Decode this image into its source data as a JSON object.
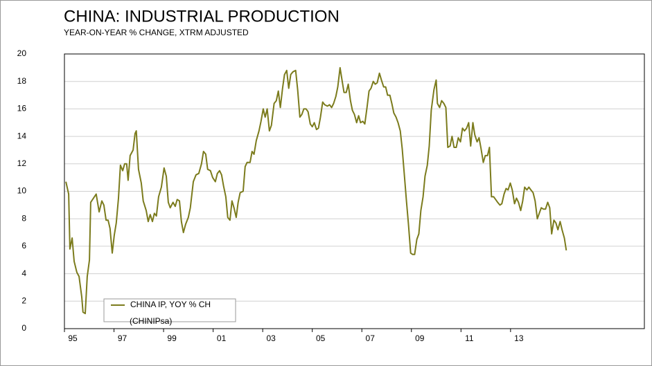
{
  "chart_data": {
    "type": "line",
    "title": "CHINA: INDUSTRIAL PRODUCTION",
    "subtitle": "YEAR-ON-YEAR % CHANGE, XTRM ADJUSTED",
    "x": [
      1995.06,
      1995.17,
      1995.22,
      1995.31,
      1995.39,
      1995.5,
      1995.59,
      1995.7,
      1995.75,
      1995.84,
      1995.92,
      1996.01,
      1996.06,
      1996.17,
      1996.28,
      1996.4,
      1996.51,
      1996.59,
      1996.68,
      1996.76,
      1996.84,
      1996.93,
      1997.01,
      1997.09,
      1997.18,
      1997.26,
      1997.35,
      1997.43,
      1997.51,
      1997.57,
      1997.65,
      1997.77,
      1997.85,
      1997.9,
      1997.99,
      1998.1,
      1998.18,
      1998.3,
      1998.38,
      1998.46,
      1998.55,
      1998.63,
      1998.71,
      1998.8,
      1998.91,
      1999.02,
      1999.11,
      1999.19,
      1999.27,
      1999.38,
      1999.47,
      1999.55,
      1999.64,
      1999.72,
      1999.8,
      1999.89,
      2000.0,
      2000.08,
      2000.2,
      2000.31,
      2000.42,
      2000.53,
      2000.61,
      2000.7,
      2000.78,
      2000.89,
      2000.98,
      2001.09,
      2001.17,
      2001.26,
      2001.34,
      2001.42,
      2001.51,
      2001.59,
      2001.68,
      2001.76,
      2001.84,
      2001.93,
      2002.01,
      2002.09,
      2002.21,
      2002.29,
      2002.37,
      2002.49,
      2002.57,
      2002.65,
      2002.74,
      2002.85,
      2002.93,
      2003.02,
      2003.1,
      2003.18,
      2003.27,
      2003.35,
      2003.46,
      2003.55,
      2003.63,
      2003.71,
      2003.8,
      2003.88,
      2003.97,
      2004.05,
      2004.13,
      2004.22,
      2004.33,
      2004.41,
      2004.5,
      2004.58,
      2004.66,
      2004.75,
      2004.83,
      2004.92,
      2005.0,
      2005.08,
      2005.17,
      2005.25,
      2005.33,
      2005.42,
      2005.5,
      2005.61,
      2005.7,
      2005.78,
      2005.86,
      2005.95,
      2006.03,
      2006.12,
      2006.2,
      2006.28,
      2006.37,
      2006.45,
      2006.54,
      2006.62,
      2006.7,
      2006.79,
      2006.87,
      2006.95,
      2007.04,
      2007.12,
      2007.21,
      2007.29,
      2007.37,
      2007.46,
      2007.54,
      2007.62,
      2007.71,
      2007.79,
      2007.88,
      2007.96,
      2008.04,
      2008.13,
      2008.21,
      2008.29,
      2008.38,
      2008.46,
      2008.55,
      2008.63,
      2008.71,
      2008.8,
      2008.88,
      2008.97,
      2009.05,
      2009.13,
      2009.22,
      2009.3,
      2009.38,
      2009.47,
      2009.55,
      2009.64,
      2009.72,
      2009.8,
      2009.91,
      2010.0,
      2010.05,
      2010.14,
      2010.22,
      2010.31,
      2010.39,
      2010.47,
      2010.56,
      2010.64,
      2010.72,
      2010.81,
      2010.89,
      2010.98,
      2011.06,
      2011.14,
      2011.23,
      2011.31,
      2011.39,
      2011.48,
      2011.56,
      2011.65,
      2011.73,
      2011.81,
      2011.9,
      2011.98,
      2012.07,
      2012.15,
      2012.23,
      2012.32,
      2012.4,
      2012.48,
      2012.57,
      2012.65,
      2012.74,
      2012.82,
      2012.9,
      2012.99,
      2013.07,
      2013.16,
      2013.24,
      2013.32,
      2013.41,
      2013.49,
      2013.57,
      2013.66,
      2013.74,
      2013.82,
      2013.91,
      2013.99,
      2014.08,
      2014.16,
      2014.24,
      2014.33,
      2014.41,
      2014.5,
      2014.58,
      2014.66,
      2014.75,
      2014.83,
      2014.91,
      2015.0,
      2015.08,
      2015.17,
      2015.25
    ],
    "series": [
      {
        "name": "CHINA IP, YOY % CH",
        "color": "#7b7b1c",
        "values": [
          10.7,
          9.8,
          5.8,
          6.6,
          4.9,
          4.1,
          3.8,
          2.3,
          1.2,
          1.1,
          3.8,
          5.0,
          9.2,
          9.5,
          9.8,
          8.5,
          9.3,
          9.0,
          7.9,
          7.9,
          7.3,
          5.5,
          6.8,
          7.7,
          9.5,
          11.9,
          11.5,
          12.0,
          12.0,
          10.8,
          12.6,
          13.0,
          14.2,
          14.4,
          11.6,
          10.6,
          9.3,
          8.6,
          7.8,
          8.3,
          7.8,
          8.4,
          8.2,
          9.6,
          10.3,
          11.7,
          11.1,
          9.2,
          8.8,
          9.2,
          8.9,
          9.4,
          9.3,
          7.8,
          7.0,
          7.6,
          8.1,
          8.8,
          10.7,
          11.2,
          11.3,
          12.0,
          12.9,
          12.7,
          11.6,
          11.5,
          11.0,
          10.7,
          11.3,
          11.5,
          11.2,
          10.4,
          9.6,
          8.1,
          7.9,
          9.3,
          8.8,
          8.1,
          9.2,
          9.9,
          10.0,
          11.8,
          12.1,
          12.1,
          12.9,
          12.7,
          13.7,
          14.4,
          15.1,
          16.0,
          15.4,
          16.0,
          14.4,
          14.8,
          16.4,
          16.6,
          17.3,
          16.1,
          17.5,
          18.5,
          18.8,
          17.5,
          18.5,
          18.7,
          18.8,
          17.4,
          15.4,
          15.6,
          16.0,
          16.0,
          15.8,
          14.9,
          14.7,
          15.0,
          14.5,
          14.6,
          15.4,
          16.5,
          16.3,
          16.2,
          16.3,
          16.1,
          16.4,
          16.9,
          17.6,
          19.0,
          18.1,
          17.2,
          17.2,
          17.8,
          16.6,
          15.9,
          15.6,
          15.0,
          15.5,
          15.0,
          15.1,
          14.9,
          16.1,
          17.3,
          17.5,
          18.0,
          17.8,
          17.9,
          18.6,
          18.1,
          17.6,
          17.6,
          17.0,
          17.0,
          16.4,
          15.7,
          15.4,
          15.0,
          14.4,
          13.1,
          11.3,
          9.3,
          7.6,
          5.5,
          5.4,
          5.4,
          6.5,
          6.9,
          8.6,
          9.6,
          11.1,
          11.9,
          13.3,
          15.9,
          17.4,
          18.1,
          16.4,
          16.1,
          16.6,
          16.4,
          16.1,
          13.2,
          13.3,
          14.0,
          13.2,
          13.2,
          13.9,
          13.6,
          14.6,
          14.4,
          14.6,
          15.0,
          13.3,
          15.0,
          14.1,
          13.6,
          13.9,
          13.1,
          12.1,
          12.6,
          12.6,
          13.2,
          9.6,
          9.6,
          9.4,
          9.2,
          9.0,
          9.1,
          9.8,
          10.2,
          10.1,
          10.6,
          10.1,
          9.1,
          9.5,
          9.2,
          8.6,
          9.3,
          10.3,
          10.1,
          10.3,
          10.1,
          9.9,
          9.3,
          8.0,
          8.4,
          8.8,
          8.7,
          8.7,
          9.2,
          8.8,
          6.9,
          7.9,
          7.7,
          7.2,
          7.8,
          7.2,
          6.6,
          5.7
        ]
      }
    ],
    "series_code": "(CHINIPsa)",
    "xlim": [
      1995,
      2018.4
    ],
    "xticks": [
      {
        "value": 1995,
        "label": "95"
      },
      {
        "value": 1997,
        "label": "97"
      },
      {
        "value": 1999,
        "label": "99"
      },
      {
        "value": 2001,
        "label": "01"
      },
      {
        "value": 2003,
        "label": "03"
      },
      {
        "value": 2005,
        "label": "05"
      },
      {
        "value": 2007,
        "label": "07"
      },
      {
        "value": 2009,
        "label": "09"
      },
      {
        "value": 2011,
        "label": "11"
      },
      {
        "value": 2013,
        "label": "13"
      }
    ],
    "ylim": [
      0,
      20
    ],
    "yticks": [
      0,
      2,
      4,
      6,
      8,
      10,
      12,
      14,
      16,
      18,
      20
    ],
    "grid": true,
    "legend": "lower left"
  }
}
